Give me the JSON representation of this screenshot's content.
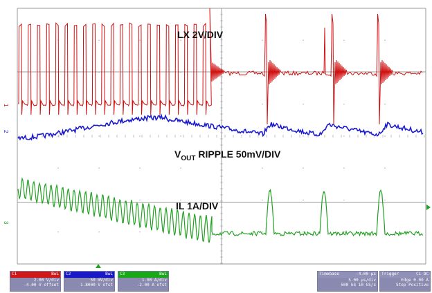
{
  "chart_data": {
    "type": "line",
    "title": "",
    "xlabel": "",
    "ylabel": "",
    "grid": true,
    "x_divisions": 10,
    "y_divisions": 8,
    "labels": {
      "lx": "LX 2V/DIV",
      "vout_main": "V",
      "vout_sub": "OUT",
      "vout_rest": " RIPPLE 50mV/DIV",
      "il": "IL 1A/DIV"
    },
    "channel_markers": [
      "1",
      "2",
      "3"
    ],
    "series": [
      {
        "channel": "1",
        "color": "#d01010",
        "kind": "lx"
      },
      {
        "channel": "2",
        "color": "#1a1acc",
        "kind": "vout"
      },
      {
        "channel": "3",
        "color": "#22a022",
        "kind": "il"
      }
    ],
    "colors": {
      "ch1": "#d01010",
      "ch2": "#1a1acc",
      "ch3": "#22a022",
      "grid": "#9a9a9a"
    }
  },
  "status_bar": {
    "ch1": {
      "header": "C1",
      "value": "BwL",
      "line1": "2.00 V/div",
      "line2": "-4.00 V offset"
    },
    "ch2": {
      "header": "C2",
      "value": "BwL",
      "line1": "50 mV/div",
      "line2": "1.8000 V ofst"
    },
    "ch3": {
      "header": "C3",
      "value": "BwL",
      "line1": "1.00 A/div",
      "line2": "-2.00 A ofst"
    },
    "timebase": {
      "header": "Timebase",
      "value": "-4.00 μs",
      "line1": "5.00 μs/div",
      "line2": "500 kS  10 GS/s"
    },
    "trigger": {
      "header": "Trigger",
      "value": "C1 DC",
      "line1": "Edge  0.00 A",
      "line2": "Stop  Positive"
    }
  }
}
